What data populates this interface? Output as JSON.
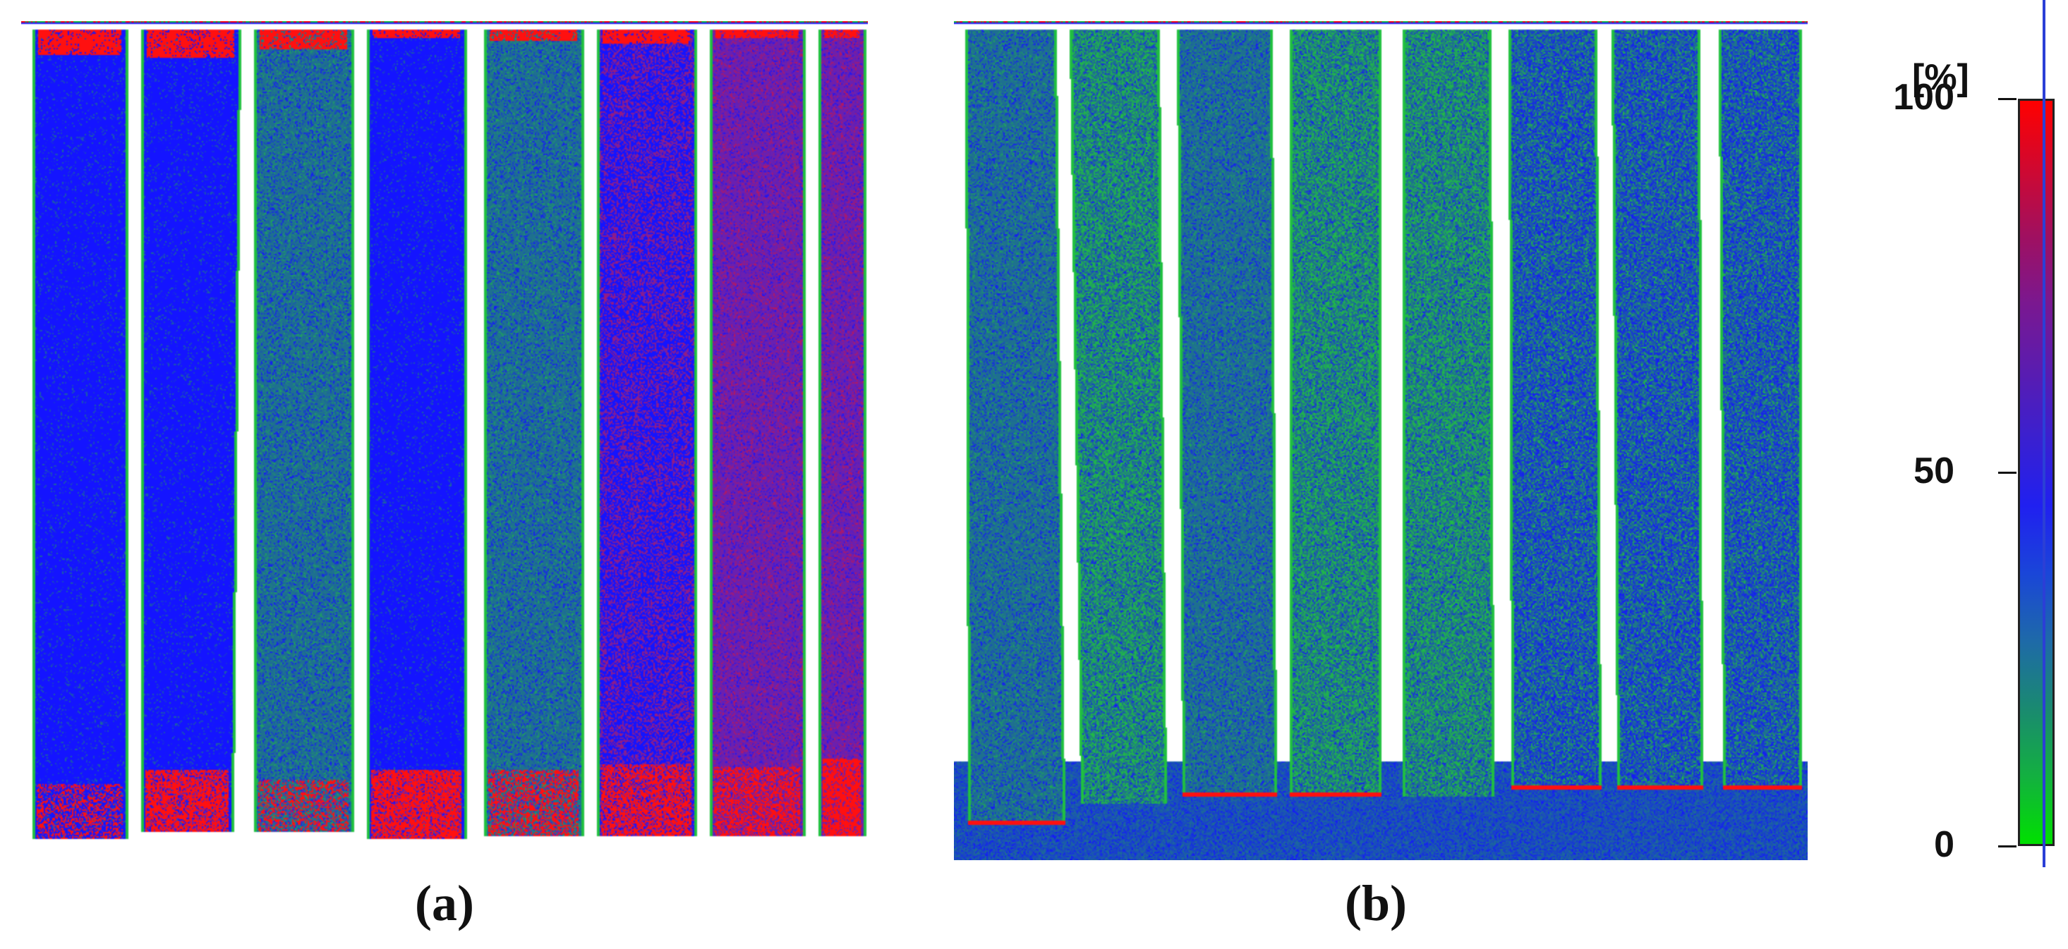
{
  "panels": [
    {
      "id": "a",
      "caption": "(a)"
    },
    {
      "id": "b",
      "caption": "(b)"
    }
  ],
  "colorbar": {
    "unit": "[%]",
    "ticks": [
      {
        "label": "100",
        "value": 100
      },
      {
        "label": "50",
        "value": 50
      },
      {
        "label": "0",
        "value": 0
      }
    ],
    "stops": [
      "#00e000",
      "#13b040",
      "#1a8a70",
      "#1e6aa8",
      "#1a46d8",
      "#2020f0",
      "#3a20d0",
      "#5a1cb0",
      "#7a1890",
      "#a01060",
      "#d00830",
      "#ff0000"
    ]
  },
  "colors": {
    "blue": "#1414ff",
    "green": "#20c040",
    "red": "#ff1010",
    "teal": "#1e7090",
    "purple": "#6a20b0",
    "axis_line": "#2b3fd6"
  }
}
